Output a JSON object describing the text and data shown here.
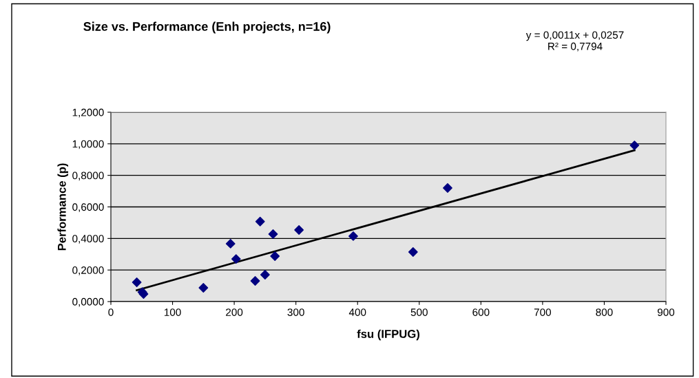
{
  "chart_data": {
    "type": "scatter",
    "title": "Size vs. Performance (Enh projects, n=16)",
    "xlabel": "fsu (IFPUG)",
    "ylabel": "Performance (p)",
    "annotations": [
      "y = 0,0011x + 0,0257\nR² = 0,7794"
    ],
    "series": [
      {
        "color": "#000080",
        "marker": "diamond",
        "x": [
          42,
          51,
          53,
          150,
          194,
          203,
          242,
          234,
          250,
          263,
          266,
          305,
          393,
          490,
          546,
          849
        ],
        "values": [
          0.122,
          0.06,
          0.048,
          0.087,
          0.367,
          0.27,
          0.507,
          0.131,
          0.17,
          0.428,
          0.288,
          0.454,
          0.415,
          0.314,
          0.72,
          0.99
        ]
      },
      {
        "type": "line",
        "color": "#000000",
        "marker": "none",
        "x": [
          42,
          849
        ],
        "values": [
          0.072,
          0.959
        ]
      }
    ],
    "xlim": [
      0,
      900
    ],
    "xticks": [
      0,
      100,
      200,
      300,
      400,
      500,
      600,
      700,
      800,
      900
    ],
    "ylim": [
      0,
      1.2
    ],
    "yticks": [
      {
        "value": 0,
        "label": "0,0000"
      },
      {
        "value": 0.2,
        "label": "0,2000"
      },
      {
        "value": 0.4,
        "label": "0,4000"
      },
      {
        "value": 0.6,
        "label": "0,6000"
      },
      {
        "value": 0.8,
        "label": "0,8000"
      },
      {
        "value": 1.0,
        "label": "1,0000"
      },
      {
        "value": 1.2,
        "label": "1,2000"
      }
    ],
    "grid": "y",
    "legend": false
  }
}
